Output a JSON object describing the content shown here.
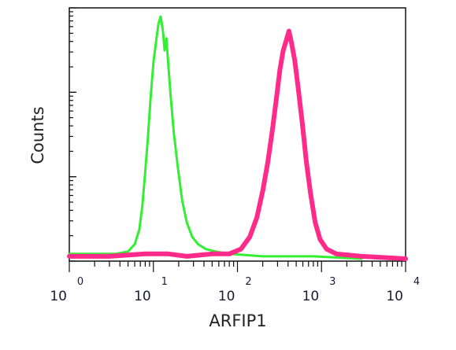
{
  "chart_data": {
    "type": "line",
    "title": "",
    "xlabel": "ARFIP1",
    "ylabel": "Counts",
    "x_scale": "log",
    "xlim": [
      1,
      10000
    ],
    "ylim": [
      0,
      1
    ],
    "grid": false,
    "legend": "none",
    "tick_labels": [
      {
        "base": "10",
        "exp": "0",
        "value": 1
      },
      {
        "base": "10",
        "exp": "1",
        "value": 10
      },
      {
        "base": "10",
        "exp": "2",
        "value": 100
      },
      {
        "base": "10",
        "exp": "3",
        "value": 1000
      },
      {
        "base": "10",
        "exp": "4",
        "value": 10000
      }
    ],
    "series": [
      {
        "color": "#33ee33",
        "points": [
          [
            1.0,
            0.02
          ],
          [
            2.0,
            0.02
          ],
          [
            3.5,
            0.02
          ],
          [
            5.0,
            0.03
          ],
          [
            6.0,
            0.06
          ],
          [
            6.8,
            0.12
          ],
          [
            7.4,
            0.22
          ],
          [
            8.0,
            0.36
          ],
          [
            8.6,
            0.5
          ],
          [
            9.2,
            0.65
          ],
          [
            10.0,
            0.81
          ],
          [
            10.8,
            0.9
          ],
          [
            11.5,
            0.97
          ],
          [
            12.2,
            1.0
          ],
          [
            13.0,
            0.94
          ],
          [
            13.6,
            0.86
          ],
          [
            14.3,
            0.91
          ],
          [
            15.0,
            0.81
          ],
          [
            16.0,
            0.68
          ],
          [
            17.5,
            0.52
          ],
          [
            19.5,
            0.38
          ],
          [
            22.0,
            0.24
          ],
          [
            25.0,
            0.15
          ],
          [
            29.0,
            0.09
          ],
          [
            34.0,
            0.06
          ],
          [
            42.0,
            0.04
          ],
          [
            55.0,
            0.03
          ],
          [
            80.0,
            0.02
          ],
          [
            200.0,
            0.01
          ],
          [
            800.0,
            0.01
          ],
          [
            3000.0,
            0.0
          ]
        ]
      },
      {
        "color": "#ff2a8a",
        "points": [
          [
            1.0,
            0.01
          ],
          [
            3.0,
            0.01
          ],
          [
            8.0,
            0.02
          ],
          [
            15.0,
            0.02
          ],
          [
            25.0,
            0.01
          ],
          [
            50.0,
            0.02
          ],
          [
            80.0,
            0.02
          ],
          [
            110.0,
            0.04
          ],
          [
            140.0,
            0.09
          ],
          [
            170.0,
            0.17
          ],
          [
            200.0,
            0.28
          ],
          [
            230.0,
            0.4
          ],
          [
            260.0,
            0.53
          ],
          [
            290.0,
            0.66
          ],
          [
            320.0,
            0.78
          ],
          [
            350.0,
            0.86
          ],
          [
            380.0,
            0.9
          ],
          [
            410.0,
            0.94
          ],
          [
            440.0,
            0.89
          ],
          [
            480.0,
            0.82
          ],
          [
            530.0,
            0.7
          ],
          [
            590.0,
            0.56
          ],
          [
            660.0,
            0.4
          ],
          [
            740.0,
            0.27
          ],
          [
            840.0,
            0.15
          ],
          [
            960.0,
            0.08
          ],
          [
            1150.0,
            0.04
          ],
          [
            1500.0,
            0.02
          ],
          [
            3000.0,
            0.01
          ],
          [
            10000.0,
            0.0
          ]
        ]
      }
    ]
  }
}
